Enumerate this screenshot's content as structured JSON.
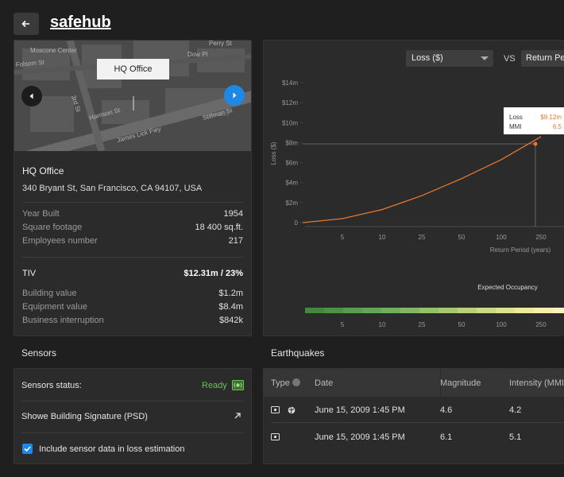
{
  "header": {
    "title": "safehub"
  },
  "map": {
    "popup": "HQ Office",
    "streets": [
      "Folsom St",
      "3rd St",
      "Harrison St",
      "James Lick Fwy",
      "Stillman St",
      "Dow Pl",
      "Perry St",
      "Moscone Center"
    ]
  },
  "building": {
    "name": "HQ Office",
    "address": "340 Bryant St, San Francisco, CA 94107, USA",
    "facts": [
      [
        "Year Built",
        "1954"
      ],
      [
        "Square footage",
        "18 400 sq.ft."
      ],
      [
        "Employees number",
        "217"
      ]
    ],
    "tiv": {
      "label": "TIV",
      "value": "$12.31m / 23%",
      "items": [
        [
          "Building value",
          "$1.2m"
        ],
        [
          "Equipment value",
          "$8.4m"
        ],
        [
          "Business interruption",
          "$842k"
        ]
      ]
    }
  },
  "controls": {
    "metric": "Loss ($)",
    "vs": "VS",
    "compare": "Return Period"
  },
  "chart_data": {
    "type": "line",
    "ylabel": "Loss ($)",
    "xlabel": "Return Period (years)",
    "categories": [
      null,
      "5",
      "10",
      "25",
      "50",
      "100",
      "250"
    ],
    "series": [
      {
        "name": "Loss",
        "color": "#e8772e",
        "values": [
          0,
          0.4,
          1.3,
          2.7,
          4.4,
          6.3,
          8.6
        ]
      }
    ],
    "ylim": [
      0,
      14
    ],
    "yticks": [
      0,
      {
        "value": 2,
        "label": "$2m"
      },
      {
        "value": 4,
        "label": "$4m"
      },
      {
        "value": 6,
        "label": "$6m"
      },
      {
        "value": 8,
        "label": "$8m"
      },
      {
        "value": 10,
        "label": "$10m"
      },
      {
        "value": 12,
        "label": "$12m"
      },
      {
        "value": 14,
        "label": "$14m"
      }
    ],
    "tooltip": {
      "loss_label": "Loss",
      "loss_value": "$9.12m",
      "mmi_label": "MMI",
      "mmi_value": "6.5"
    }
  },
  "occupancy": {
    "title": "Expected Occupancy",
    "colors": [
      "#3f8a3f",
      "#4a9446",
      "#559e4d",
      "#62a754",
      "#6fb05b",
      "#80b863",
      "#92c06b",
      "#a5c873",
      "#b8d07c",
      "#cbd886",
      "#dde191",
      "#ede99d",
      "#f6eeab",
      "#fbf2bb"
    ],
    "ticks": [
      "5",
      "10",
      "25",
      "50",
      "100",
      "250"
    ]
  },
  "sensors": {
    "title": "Sensors",
    "status_label": "Sensors status:",
    "status_value": "Ready",
    "signature": "Showe Building Signature (PSD)",
    "include": "Include sensor data in loss estimation"
  },
  "earthquakes": {
    "title": "Earthquakes",
    "headers": [
      "Type",
      "Date",
      "Magnitude",
      "Intensity (MMI)"
    ],
    "rows": [
      [
        "June 15, 2009 1:45 PM",
        "4.6",
        "4.2"
      ],
      [
        "June 15, 2009 1:45 PM",
        "6.1",
        "5.1"
      ]
    ]
  }
}
